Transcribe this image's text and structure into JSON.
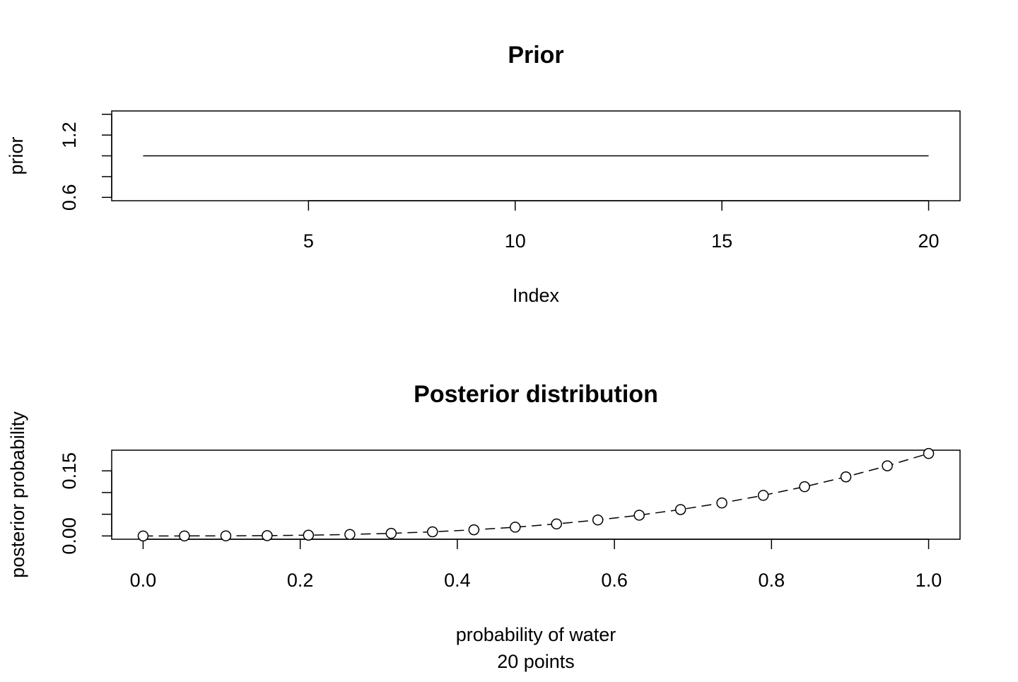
{
  "chart_data": [
    {
      "type": "line",
      "title": "Prior",
      "x_label": "Index",
      "y_label": "prior",
      "x": [
        1,
        2,
        3,
        4,
        5,
        6,
        7,
        8,
        9,
        10,
        11,
        12,
        13,
        14,
        15,
        16,
        17,
        18,
        19,
        20
      ],
      "values": [
        1,
        1,
        1,
        1,
        1,
        1,
        1,
        1,
        1,
        1,
        1,
        1,
        1,
        1,
        1,
        1,
        1,
        1,
        1,
        1
      ],
      "color": "#000000",
      "markers": false,
      "dashed": false,
      "xlim": [
        0.24,
        20.76
      ],
      "xticks": [
        5,
        10,
        15,
        20
      ],
      "ylim": [
        0.568,
        1.432
      ],
      "yticks": [
        0.6,
        {
          "value": 0.8,
          "label": null
        },
        {
          "value": 1.0,
          "label": null
        },
        1.2,
        {
          "value": 1.4,
          "label": null
        }
      ]
    },
    {
      "type": "line",
      "title": "Posterior distribution",
      "x_label": "probability of water",
      "subtitle": "20  points",
      "y_label": "posterior probability",
      "x": [
        0,
        0.0526,
        0.1053,
        0.1579,
        0.2105,
        0.2632,
        0.3158,
        0.3684,
        0.4211,
        0.4737,
        0.5263,
        0.5789,
        0.6316,
        0.6842,
        0.7368,
        0.7895,
        0.8421,
        0.8947,
        0.9474,
        1
      ],
      "values": [
        0,
        2.77e-05,
        0.000222,
        0.000748,
        0.001773,
        0.003463,
        0.005983,
        0.009501,
        0.014183,
        0.020194,
        0.027701,
        0.03687,
        0.047867,
        0.060859,
        0.076011,
        0.09349,
        0.113463,
        0.136094,
        0.161551,
        0.19
      ],
      "color": "#000000",
      "markers": true,
      "dashed": true,
      "xlim": [
        -0.04,
        1.04
      ],
      "xticks": [
        {
          "value": 0,
          "label": "0.0"
        },
        0.2,
        0.4,
        0.6,
        0.8,
        {
          "value": 1,
          "label": "1.0"
        }
      ],
      "ylim": [
        -0.0076,
        0.1976
      ],
      "yticks": [
        {
          "value": 0,
          "label": "0.00"
        },
        {
          "value": 0.05,
          "label": null
        },
        {
          "value": 0.1,
          "label": null
        },
        0.15
      ]
    }
  ]
}
